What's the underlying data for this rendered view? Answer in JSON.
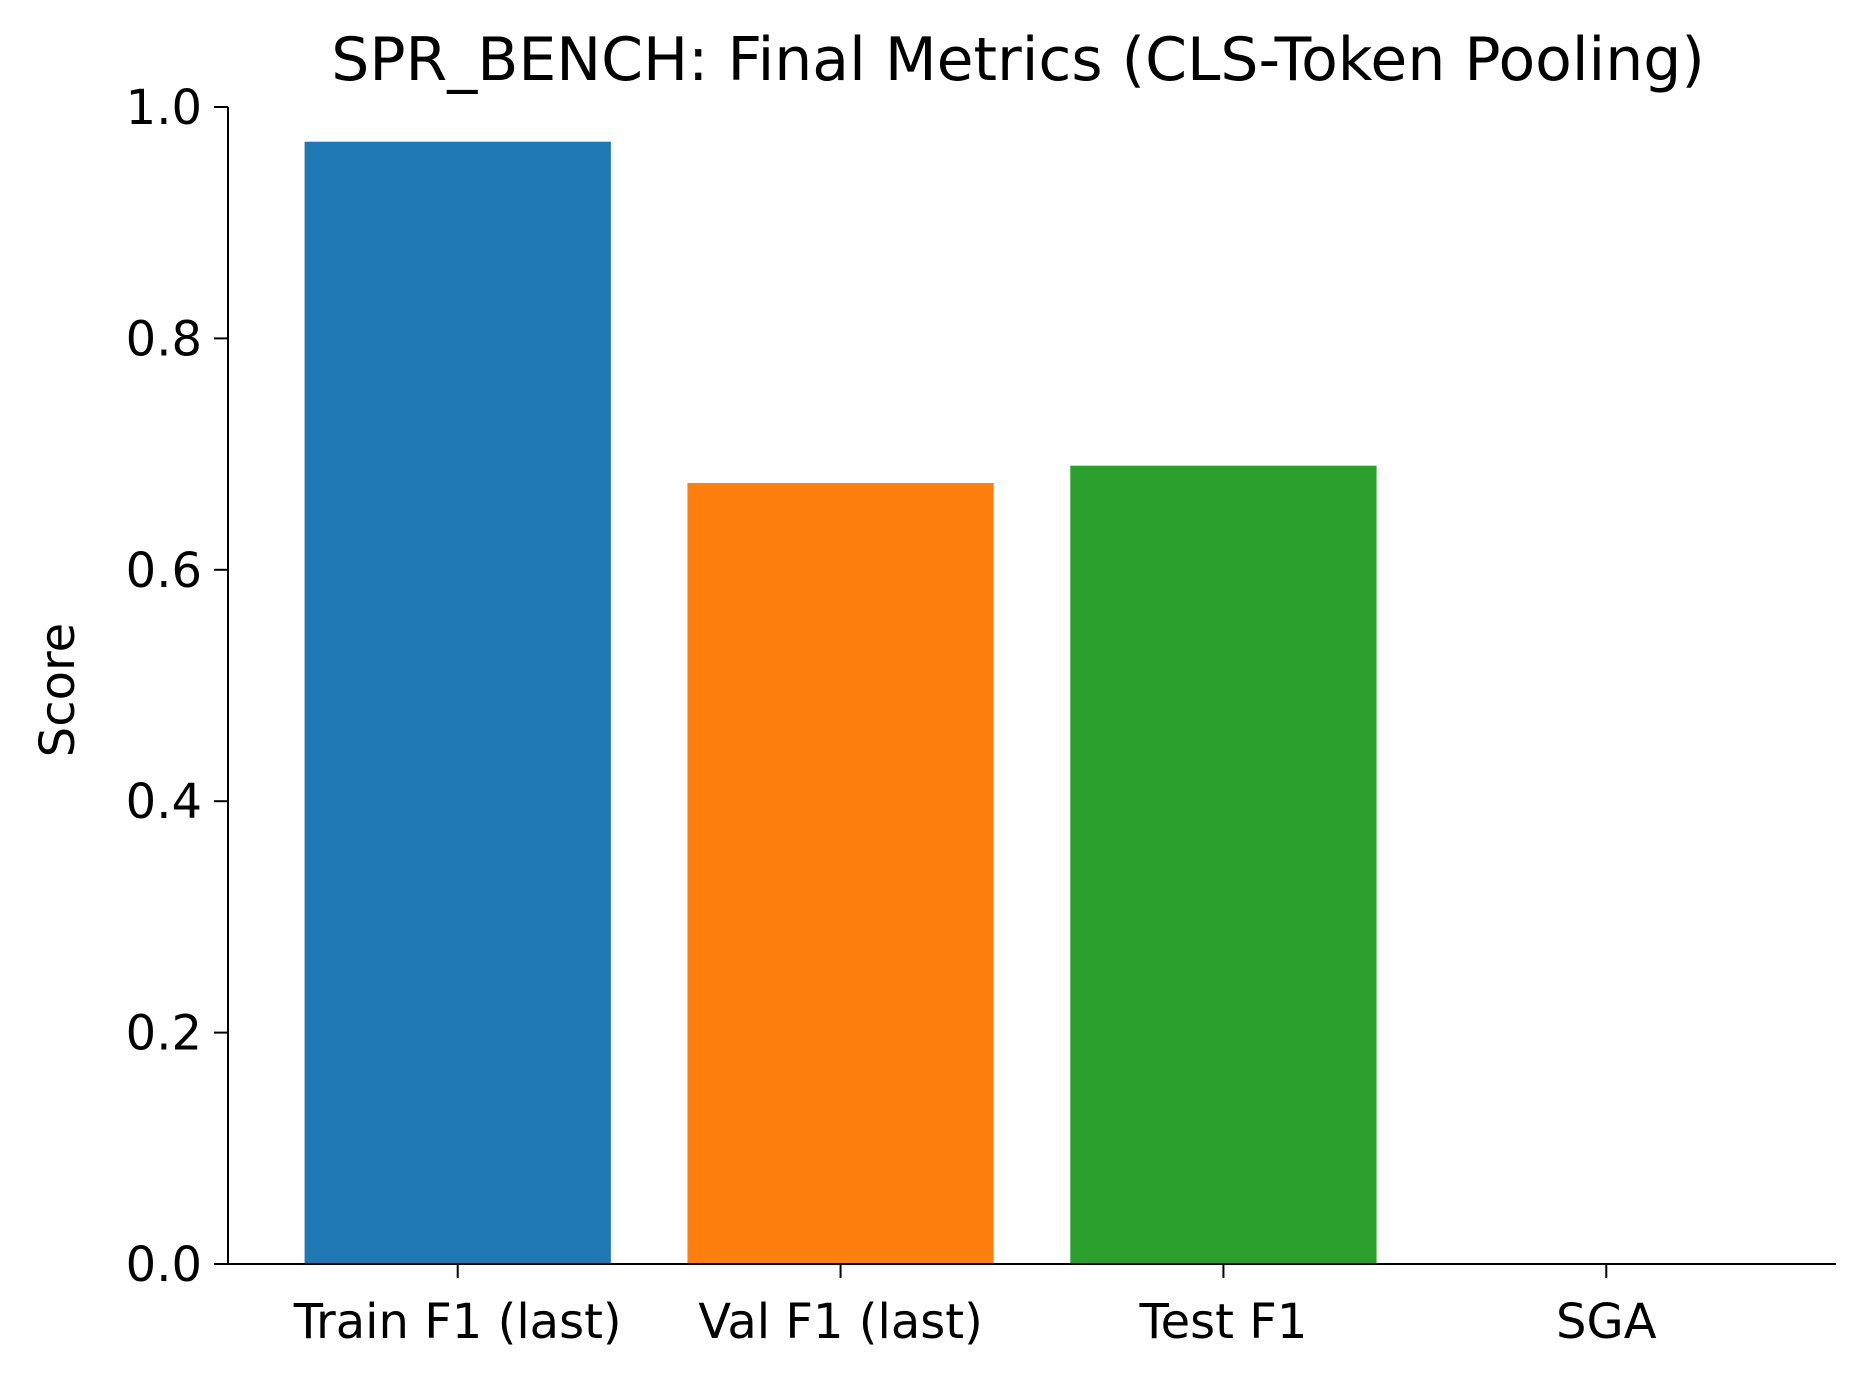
{
  "chart_data": {
    "type": "bar",
    "title": "SPR_BENCH: Final Metrics (CLS-Token Pooling)",
    "xlabel": "",
    "ylabel": "Score",
    "categories": [
      "Train F1 (last)",
      "Val F1 (last)",
      "Test F1",
      "SGA"
    ],
    "values": [
      0.97,
      0.675,
      0.69,
      0.0
    ],
    "colors": [
      "#1f77b4",
      "#ff7f0e",
      "#2ca02c",
      "#d62728"
    ],
    "ylim": [
      0,
      1.0
    ],
    "yticks": [
      "0.0",
      "0.2",
      "0.4",
      "0.6",
      "0.8",
      "1.0"
    ],
    "grid": false,
    "legend": "none"
  }
}
